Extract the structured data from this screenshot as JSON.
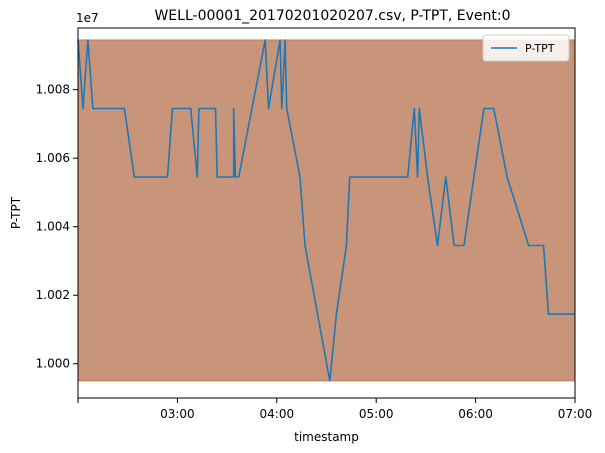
{
  "chart_data": {
    "type": "line",
    "title": "WELL-00001_20170201020207.csv, P-TPT, Event:0",
    "xlabel": "timestamp",
    "ylabel": "P-TPT",
    "y_offset_label": "1e7",
    "xlim": [
      "02:00",
      "07:00"
    ],
    "ylim": [
      9999000,
      10009800
    ],
    "x_ticks": [
      "03:00",
      "04:00",
      "05:00",
      "06:00",
      "07:00"
    ],
    "y_ticks": [
      10000000,
      10002000,
      10004000,
      10006000,
      10008000
    ],
    "y_tick_labels": [
      "1.000",
      "1.002",
      "1.004",
      "1.006",
      "1.008"
    ],
    "band": {
      "y_from": 9999500,
      "y_to": 10009450,
      "color": "#c8957a"
    },
    "legend": {
      "position": "upper right"
    },
    "series": [
      {
        "name": "P-TPT",
        "color": "#1f77b4",
        "x": [
          "02:00",
          "02:03",
          "02:06",
          "02:09",
          "02:28",
          "02:34",
          "02:54",
          "02:57",
          "03:08",
          "03:12",
          "03:13",
          "03:23",
          "03:24",
          "03:34",
          "03:34",
          "03:35",
          "03:37",
          "03:53",
          "03:55",
          "04:02",
          "04:03",
          "04:05",
          "04:06",
          "04:14",
          "04:17",
          "04:32",
          "04:36",
          "04:42",
          "04:44",
          "05:09",
          "05:19",
          "05:23",
          "05:25",
          "05:26",
          "05:31",
          "05:37",
          "05:42",
          "05:47",
          "05:53",
          "05:59",
          "06:05",
          "06:11",
          "06:19",
          "06:32",
          "06:41",
          "06:44",
          "07:00"
        ],
        "y": [
          10009450,
          10007450,
          10009450,
          10007450,
          10007450,
          10005450,
          10005450,
          10007450,
          10007450,
          10005450,
          10007450,
          10007450,
          10005450,
          10005450,
          10007450,
          10005450,
          10005450,
          10009450,
          10007450,
          10009450,
          10007450,
          10009450,
          10007450,
          10005450,
          10003450,
          9999500,
          10001450,
          10003450,
          10005450,
          10005450,
          10005450,
          10007450,
          10005450,
          10007450,
          10005450,
          10003450,
          10005450,
          10003450,
          10003450,
          10005450,
          10007450,
          10007450,
          10005450,
          10003450,
          10003450,
          10001450,
          10001450
        ]
      }
    ]
  }
}
